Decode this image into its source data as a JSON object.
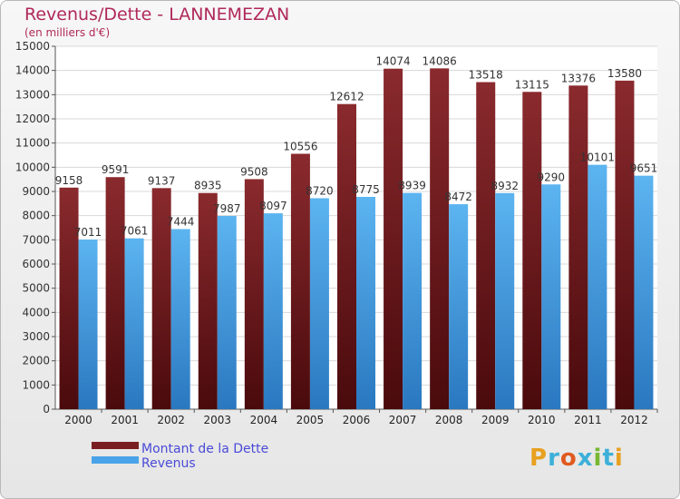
{
  "chart_data": {
    "type": "bar",
    "title": "Revenus/Dette - LANNEMEZAN",
    "subtitle": "(en milliers d'€)",
    "categories": [
      "2000",
      "2001",
      "2002",
      "2003",
      "2004",
      "2005",
      "2006",
      "2007",
      "2008",
      "2009",
      "2010",
      "2011",
      "2012"
    ],
    "series": [
      {
        "name": "Montant de la Dette",
        "color": "#7a1e22",
        "values": [
          9158,
          9591,
          9137,
          8935,
          9508,
          10556,
          12612,
          14074,
          14086,
          13518,
          13115,
          13376,
          13580
        ]
      },
      {
        "name": "Revenus",
        "color": "#4aa3e8",
        "values": [
          7011,
          7061,
          7444,
          7987,
          8097,
          8720,
          8775,
          8939,
          8472,
          8932,
          9290,
          10101,
          9651
        ]
      }
    ],
    "ylim": [
      0,
      15000
    ],
    "yticks": [
      0,
      1000,
      2000,
      3000,
      4000,
      5000,
      6000,
      7000,
      8000,
      9000,
      10000,
      11000,
      12000,
      13000,
      14000,
      15000
    ],
    "grid": true,
    "legend_position": "bottom-left"
  },
  "logo": "Proxiti"
}
